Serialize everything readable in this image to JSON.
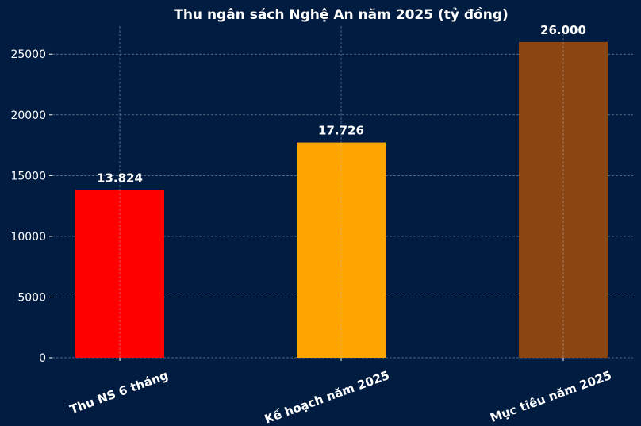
{
  "chart_data": {
    "type": "bar",
    "title": "Thu ngân sách Nghệ An năm 2025 (tỷ đồng)",
    "xlabel": "",
    "ylabel": "",
    "categories": [
      "Thu NS 6 tháng",
      "Kế hoạch năm 2025",
      "Mục tiêu năm 2025"
    ],
    "values": [
      13824,
      17726,
      26000
    ],
    "data_labels": [
      "13.824",
      "17.726",
      "26.000"
    ],
    "colors": [
      "#ff0000",
      "#ffa500",
      "#8b4513"
    ],
    "yticks": [
      0,
      5000,
      10000,
      15000,
      20000,
      25000
    ],
    "ylim": [
      0,
      27300
    ],
    "grid": true,
    "background": "#001c40"
  }
}
